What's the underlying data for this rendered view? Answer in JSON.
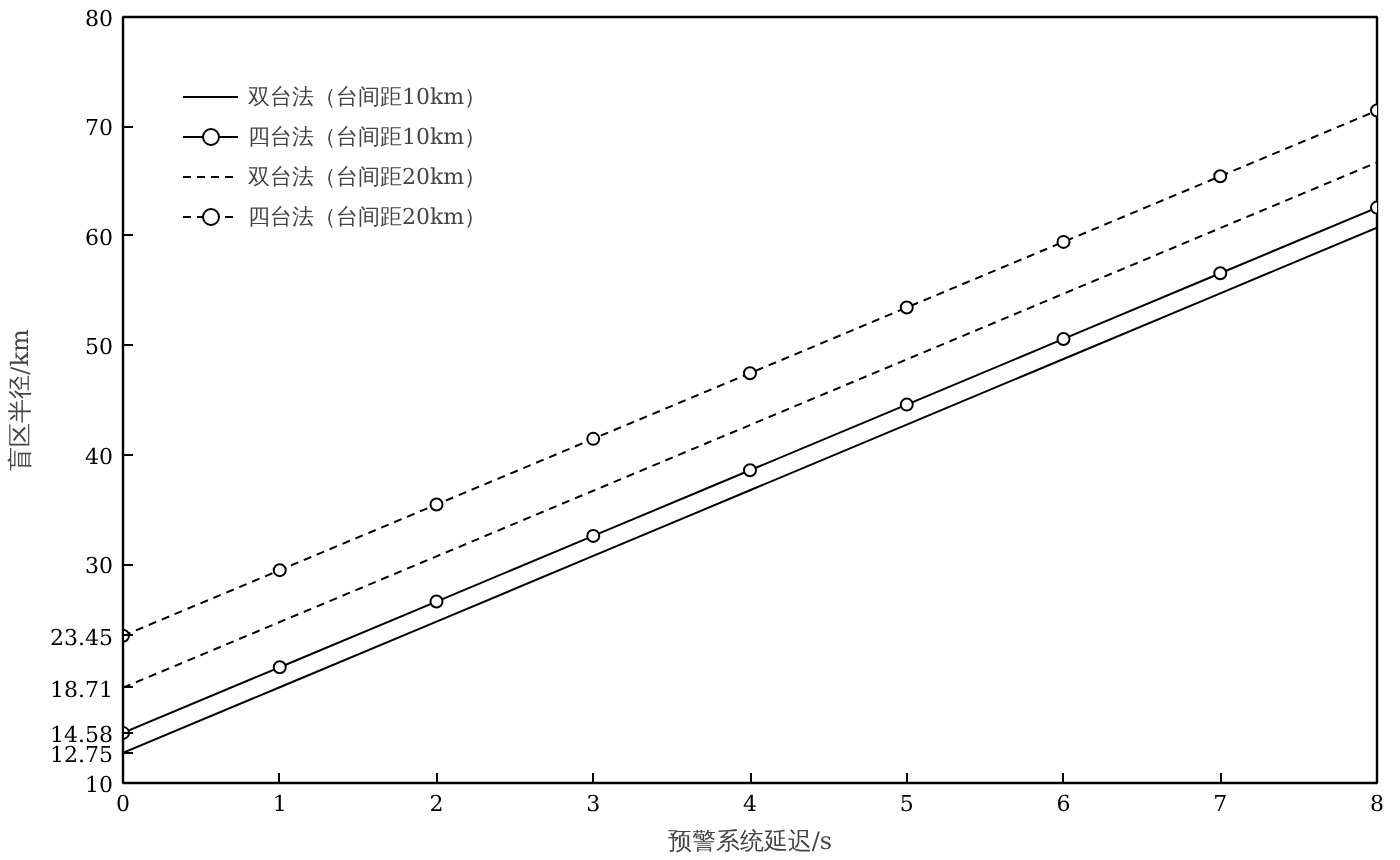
{
  "chart_data": {
    "type": "line",
    "xlabel": "预警系统延迟/s",
    "ylabel": "盲区半径/km",
    "x": [
      0,
      1,
      2,
      3,
      4,
      5,
      6,
      7,
      8
    ],
    "xlim": [
      0,
      8
    ],
    "xticks": [
      0,
      1,
      2,
      3,
      4,
      5,
      6,
      7,
      8
    ],
    "ylim": [
      10,
      80
    ],
    "yticks": [
      10,
      12.75,
      14.58,
      18.71,
      23.45,
      30,
      40,
      50,
      60,
      70,
      80
    ],
    "grid": false,
    "legend": "top left",
    "series": [
      {
        "name": "双台法（台间距10km）",
        "color": "#000000",
        "marker": "none",
        "line_style": "solid",
        "values": [
          12.75,
          18.75,
          24.75,
          30.75,
          36.75,
          42.75,
          48.75,
          54.75,
          60.75
        ]
      },
      {
        "name": "四台法（台间距10km）",
        "color": "#000000",
        "marker": "circle",
        "line_style": "solid",
        "values": [
          14.58,
          20.58,
          26.58,
          32.58,
          38.58,
          44.58,
          50.58,
          56.58,
          62.58
        ]
      },
      {
        "name": "双台法（台间距20km）",
        "color": "#000000",
        "marker": "none",
        "line_style": "dashed",
        "values": [
          18.71,
          24.71,
          30.71,
          36.71,
          42.71,
          48.71,
          54.71,
          60.71,
          66.71
        ]
      },
      {
        "name": "四台法（台间距20km）",
        "color": "#000000",
        "marker": "circle",
        "line_style": "dashed",
        "values": [
          23.45,
          29.45,
          35.45,
          41.45,
          47.45,
          53.45,
          59.45,
          65.45,
          71.45
        ]
      }
    ]
  }
}
